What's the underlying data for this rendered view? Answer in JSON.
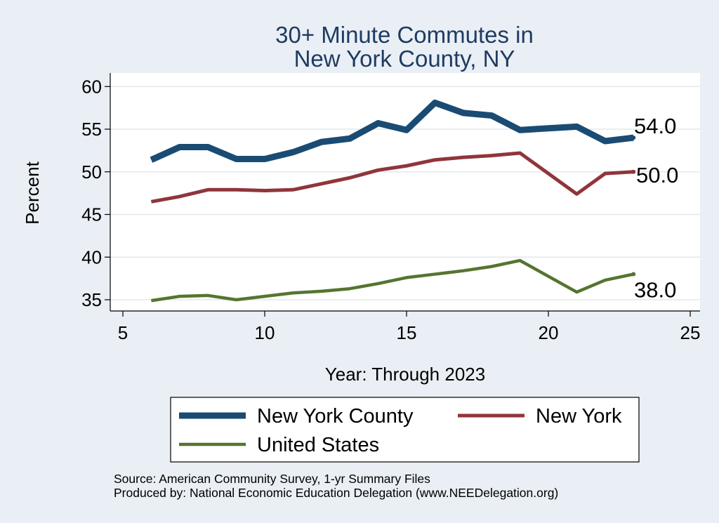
{
  "chart_data": {
    "type": "line",
    "title": [
      "30+ Minute Commutes in",
      "New York County, NY"
    ],
    "xlabel": "Year: Through 2023",
    "ylabel": "Percent",
    "xlim": [
      5,
      25
    ],
    "ylim": [
      34,
      61
    ],
    "xticks": [
      5,
      10,
      15,
      20,
      25
    ],
    "yticks": [
      35,
      40,
      45,
      50,
      55,
      60
    ],
    "grid": true,
    "x": [
      6,
      7,
      8,
      9,
      10,
      11,
      12,
      13,
      14,
      15,
      16,
      17,
      18,
      19,
      21,
      22,
      23
    ],
    "series": [
      {
        "name": "New York County",
        "color": "#1a4b73",
        "values": [
          51.4,
          52.9,
          52.9,
          51.5,
          51.5,
          52.3,
          53.5,
          53.9,
          55.7,
          54.9,
          58.1,
          56.9,
          56.6,
          54.9,
          55.3,
          53.6,
          54.0
        ],
        "end_label": "54.0"
      },
      {
        "name": "New York",
        "color": "#90353b",
        "values": [
          46.5,
          47.1,
          47.9,
          47.9,
          47.8,
          47.9,
          48.6,
          49.3,
          50.2,
          50.7,
          51.4,
          51.7,
          51.9,
          52.2,
          47.4,
          49.8,
          50.0
        ],
        "end_label": "50.0"
      },
      {
        "name": "United States",
        "color": "#55752f",
        "values": [
          34.9,
          35.4,
          35.5,
          35.0,
          35.4,
          35.8,
          36.0,
          36.3,
          36.9,
          37.6,
          38.0,
          38.4,
          38.9,
          39.6,
          35.9,
          37.3,
          38.0
        ],
        "end_label": "38.0"
      }
    ],
    "legend_position": "bottom"
  },
  "source": {
    "line1": "Source: American Community Survey, 1-yr Summary Files",
    "line2": "Produced by: National Economic Education Delegation (www.NEEDelegation.org)"
  }
}
